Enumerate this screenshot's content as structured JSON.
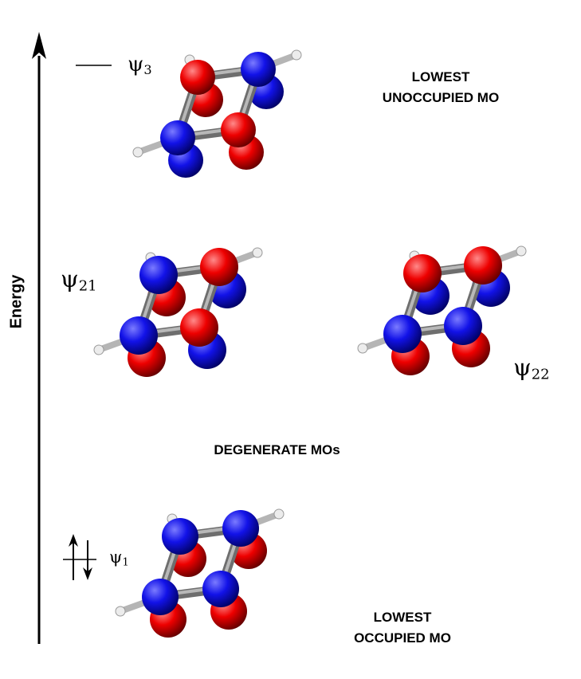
{
  "axis": {
    "label": "Energy"
  },
  "levels": [
    {
      "id": "psi3",
      "symbol": "ψ",
      "subscript": "3",
      "caption": [
        "LOWEST",
        "UNOCCUPIED MO"
      ],
      "electrons": 0
    },
    {
      "id": "psi21",
      "symbol": "ψ",
      "subscript": "21"
    },
    {
      "id": "psi22",
      "symbol": "ψ",
      "subscript": "22"
    },
    {
      "id": "psi1",
      "symbol": "ψ",
      "subscript": "1",
      "caption": [
        "LOWEST",
        "OCCUPIED MO"
      ],
      "electrons": 2
    }
  ],
  "degenerate_caption": "DEGENERATE MOs",
  "lobe_colors": {
    "positive": "#ee0000",
    "negative": "#0000dd"
  },
  "frame_color": "#8c8c8c",
  "hydrogen_color": "#ececec",
  "molecules": [
    {
      "name": "psi3-orbital",
      "front_top": [
        "red",
        "blue"
      ],
      "front_bottom": [
        "blue",
        "red"
      ],
      "back_top": [
        "red",
        "blue"
      ],
      "back_bottom": [
        "blue",
        "red"
      ]
    },
    {
      "name": "psi21-orbital",
      "front_top": [
        "blue",
        "red"
      ],
      "front_bottom": [
        "blue",
        "red"
      ],
      "back_top": [
        "red",
        "blue"
      ],
      "back_bottom": [
        "red",
        "blue"
      ]
    },
    {
      "name": "psi22-orbital",
      "front_top": [
        "red",
        "red"
      ],
      "front_bottom": [
        "blue",
        "blue"
      ],
      "back_top": [
        "blue",
        "blue"
      ],
      "back_bottom": [
        "red",
        "red"
      ]
    },
    {
      "name": "psi1-orbital",
      "front_top": [
        "blue",
        "blue"
      ],
      "front_bottom": [
        "blue",
        "blue"
      ],
      "back_top": [
        "red",
        "red"
      ],
      "back_bottom": [
        "red",
        "red"
      ]
    }
  ]
}
